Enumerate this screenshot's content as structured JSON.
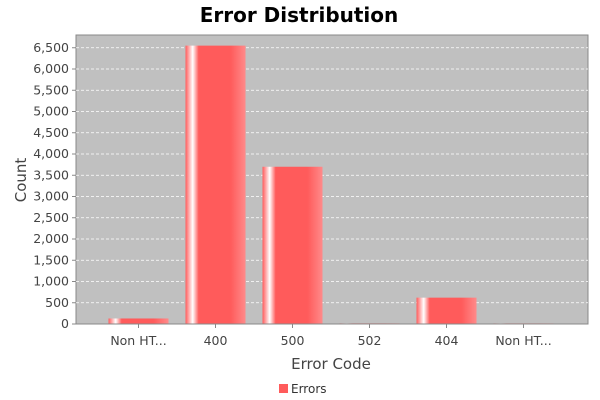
{
  "chart_data": {
    "type": "bar",
    "title": "Error Distribution",
    "xlabel": "Error Code",
    "ylabel": "Count",
    "categories": [
      "Non HT...",
      "400",
      "500",
      "502",
      "404",
      "Non HT..."
    ],
    "series": [
      {
        "name": "Errors",
        "values": [
          130,
          6550,
          3700,
          15,
          620,
          5
        ]
      }
    ],
    "yticks": [
      0,
      500,
      1000,
      1500,
      2000,
      2500,
      3000,
      3500,
      4000,
      4500,
      5000,
      5500,
      6000,
      6500
    ],
    "ytick_labels": [
      "0",
      "500",
      "1,000",
      "1,500",
      "2,000",
      "2,500",
      "3,000",
      "3,500",
      "4,000",
      "4,500",
      "5,000",
      "5,500",
      "6,000",
      "6,500"
    ],
    "ylim": [
      0,
      6800
    ],
    "grid": true,
    "legend_position": "bottom",
    "colors": {
      "bar": "#ff5b5b",
      "bar_highlight": "#ffffff",
      "plot_background": "#c0c0c0",
      "grid": "#ffffff"
    }
  }
}
